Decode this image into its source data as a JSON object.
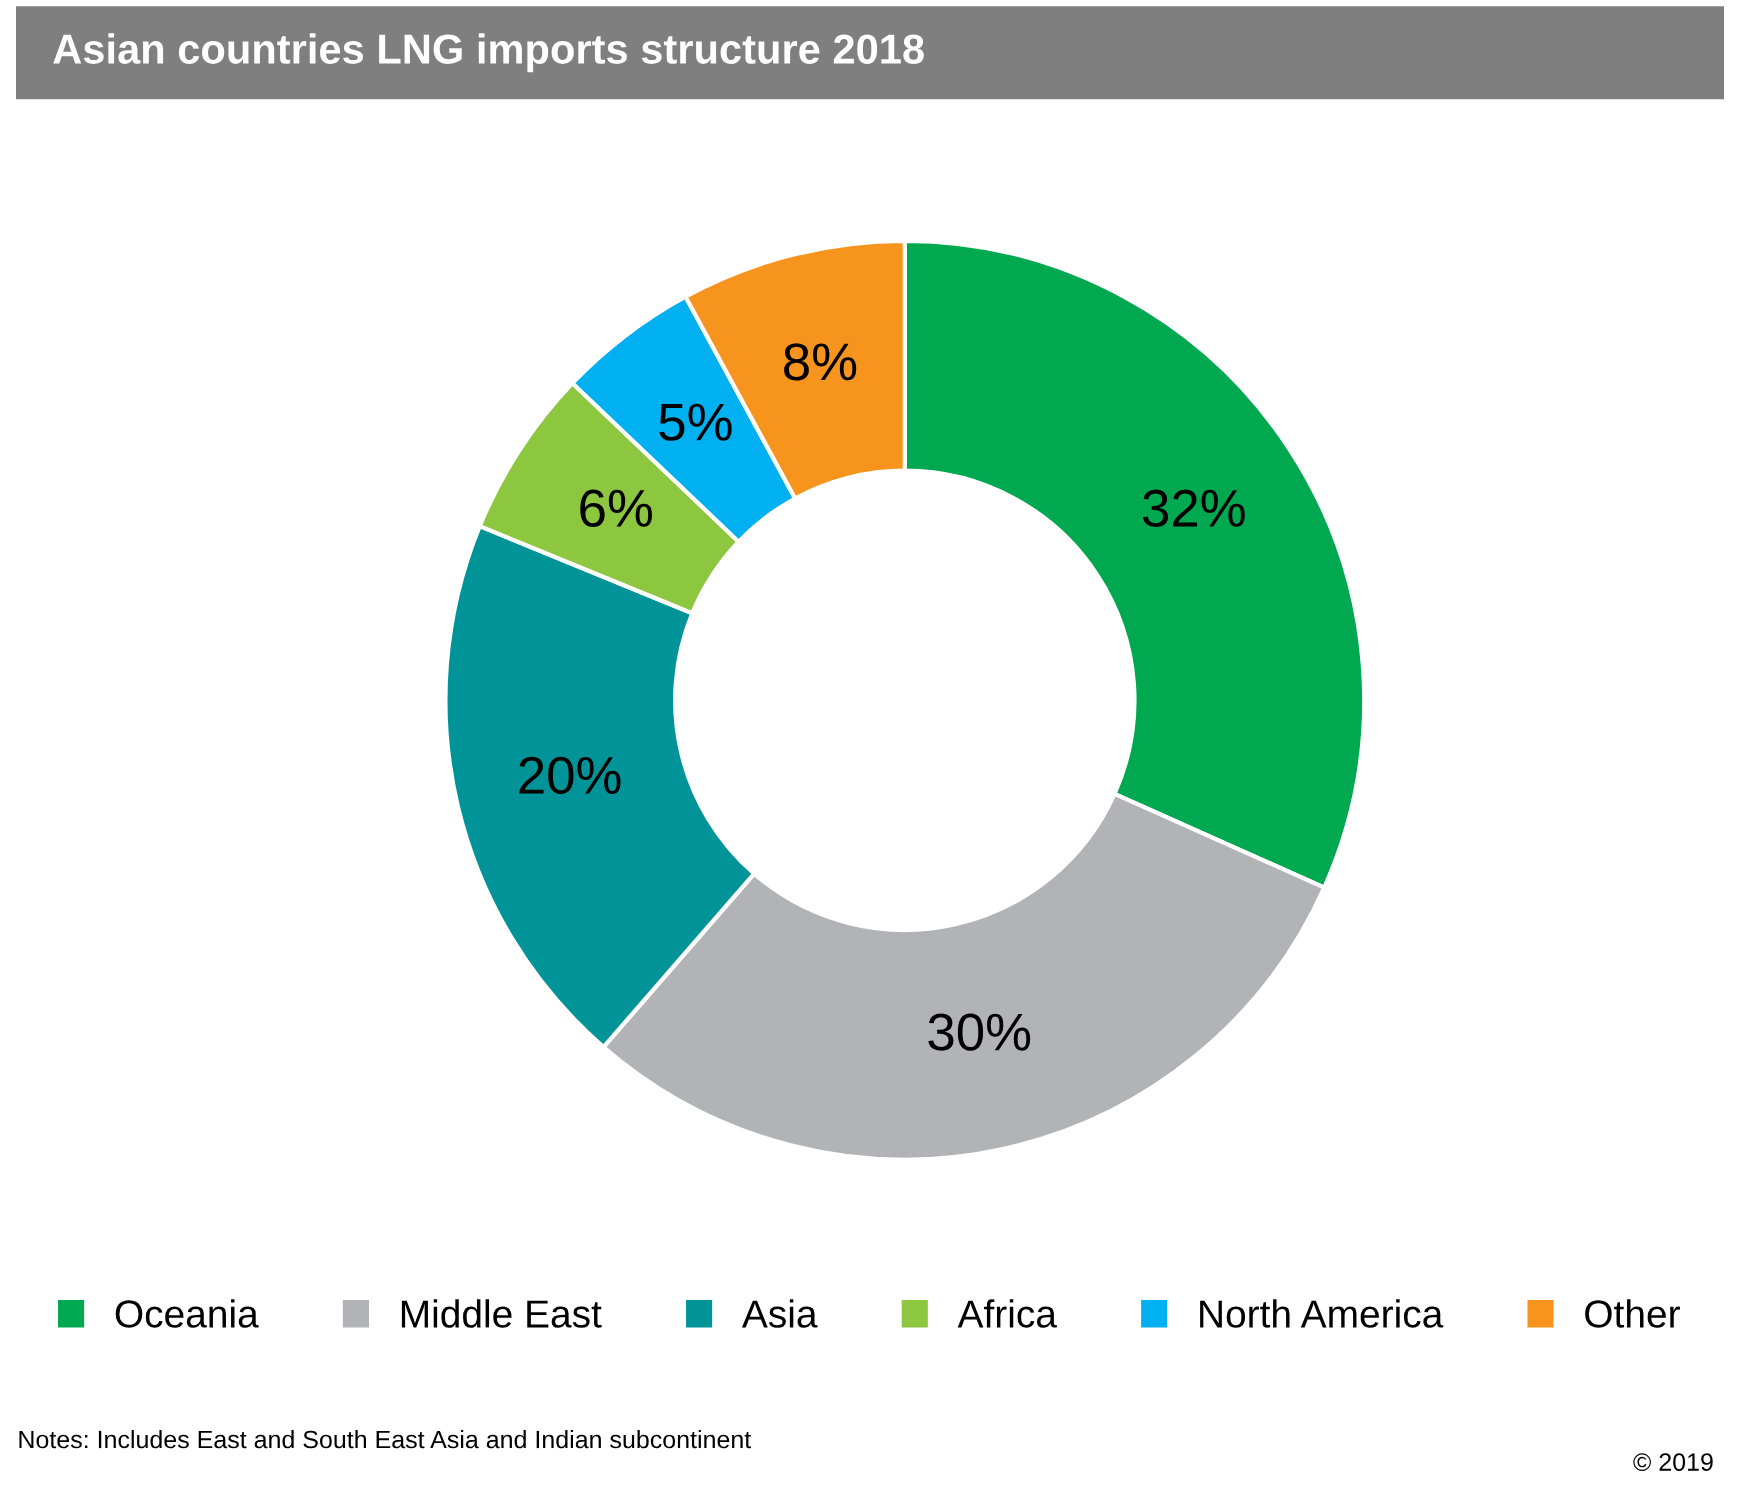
{
  "chart_data": {
    "type": "donut",
    "title": "Asian countries LNG imports structure 2018",
    "categories": [
      "Oceania",
      "Middle East",
      "Asia",
      "Africa",
      "North America",
      "Other"
    ],
    "values": [
      32,
      30,
      20,
      6,
      5,
      8
    ],
    "colors": [
      "#00a84f",
      "#b1b3b6",
      "#009499",
      "#8dc63f",
      "#00b0f0",
      "#f7941d"
    ],
    "value_labels": [
      "32%",
      "30%",
      "20%",
      "6%",
      "5%",
      "8%"
    ],
    "legend": "bottom",
    "annotations": [
      "Notes: Includes East and South East Asia and Indian subcontinent",
      "© 2019"
    ]
  }
}
